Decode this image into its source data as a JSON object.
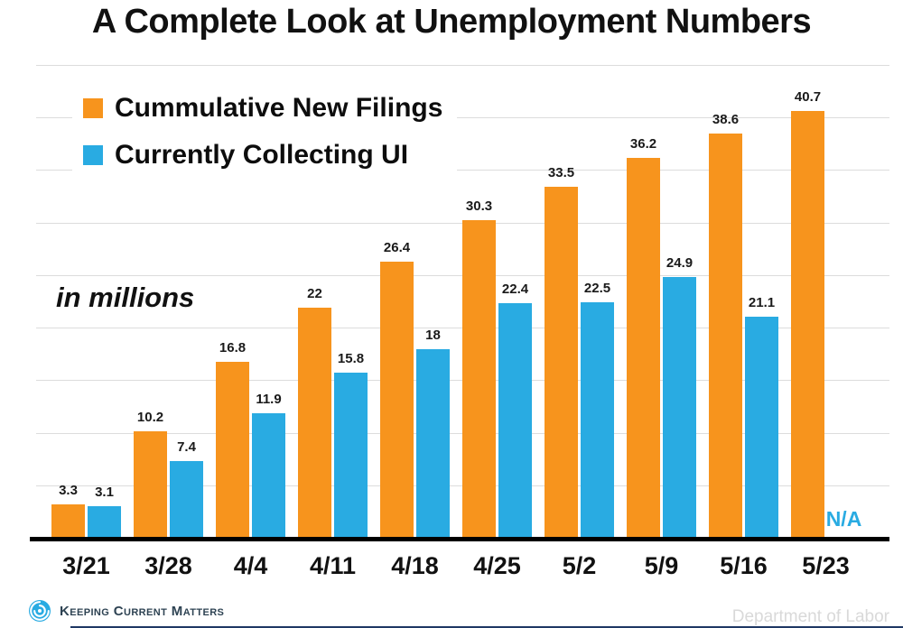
{
  "chart_data": {
    "type": "bar",
    "title": "A Complete Look at Unemployment Numbers",
    "unit_note": "in millions",
    "categories": [
      "3/21",
      "3/28",
      "4/4",
      "4/11",
      "4/18",
      "4/25",
      "5/2",
      "5/9",
      "5/16",
      "5/23"
    ],
    "series": [
      {
        "name": "Cummulative New Filings",
        "color": "#F7941D",
        "values": [
          3.3,
          10.2,
          16.8,
          22,
          26.4,
          30.3,
          33.5,
          36.2,
          38.6,
          40.7
        ],
        "labels": [
          "3.3",
          "10.2",
          "16.8",
          "22",
          "26.4",
          "30.3",
          "33.5",
          "36.2",
          "38.6",
          "40.7"
        ]
      },
      {
        "name": "Currently Collecting UI",
        "color": "#29ABE2",
        "values": [
          3.1,
          7.4,
          11.9,
          15.8,
          18,
          22.4,
          22.5,
          24.9,
          21.1,
          null
        ],
        "labels": [
          "3.1",
          "7.4",
          "11.9",
          "15.8",
          "18",
          "22.4",
          "22.5",
          "24.9",
          "21.1",
          "N/A"
        ]
      }
    ],
    "ylim": [
      0,
      45
    ],
    "gridline_step": 5,
    "grid": true,
    "legend_position": "top-left",
    "value_labels_shown": true
  },
  "colors": {
    "orange": "#F7941D",
    "blue": "#29ABE2",
    "gridline": "#DCDCDC",
    "axis": "#000000",
    "source_text": "#D9D9D9",
    "brand_text": "#2E4353"
  },
  "footer": {
    "brand": "Keeping Current Matters",
    "source": "Department of Labor"
  }
}
